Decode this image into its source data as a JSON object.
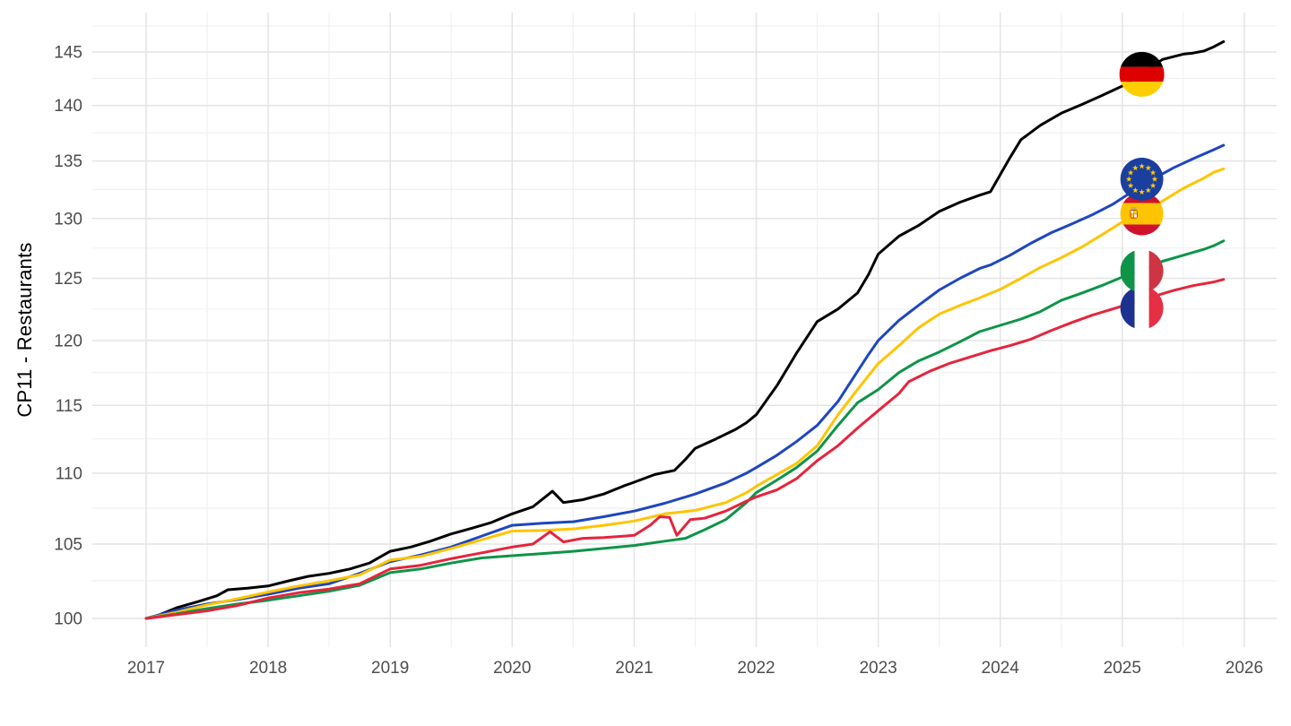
{
  "figure": {
    "background": "#ffffff"
  },
  "chart_data": {
    "type": "line",
    "title": "",
    "xlabel": "",
    "ylabel": "CP11 - Restaurants",
    "y_scale": "log",
    "grid": "on",
    "legend": "none (flag icons mark each series near its end)",
    "x_range": [
      2016.56,
      2026.26
    ],
    "y_range": [
      98.1,
      148.8
    ],
    "x_ticks": [
      2017,
      2018,
      2019,
      2020,
      2021,
      2022,
      2023,
      2024,
      2025,
      2026
    ],
    "y_ticks": [
      100,
      105,
      110,
      115,
      120,
      125,
      130,
      135,
      140,
      145
    ],
    "y_minor_ticks": [
      102.5,
      107.5,
      112.5,
      117.5,
      122.5,
      127.5,
      132.5,
      137.5,
      142.5,
      147.5
    ],
    "colors": {
      "grid_major": "#e4e4e4",
      "grid_minor": "#f1f1f1",
      "tick_text": "#4d4d4d",
      "germany": "#000000",
      "eu": "#1e46be",
      "spain": "#ffc400",
      "italy": "#0d9448",
      "france": "#e6243c"
    },
    "series": [
      {
        "name": "Germany",
        "id": "germany",
        "color": "#000000",
        "flag": "de",
        "flag_t": 2025.16,
        "flag_v": 142.9,
        "points": [
          [
            2017.0,
            100.0
          ],
          [
            2017.08,
            100.15
          ],
          [
            2017.25,
            100.7
          ],
          [
            2017.42,
            101.1
          ],
          [
            2017.58,
            101.5
          ],
          [
            2017.67,
            101.9
          ],
          [
            2017.83,
            102.0
          ],
          [
            2018.0,
            102.15
          ],
          [
            2018.17,
            102.5
          ],
          [
            2018.33,
            102.8
          ],
          [
            2018.5,
            103.0
          ],
          [
            2018.67,
            103.3
          ],
          [
            2018.83,
            103.7
          ],
          [
            2019.0,
            104.5
          ],
          [
            2019.17,
            104.8
          ],
          [
            2019.33,
            105.2
          ],
          [
            2019.5,
            105.7
          ],
          [
            2019.67,
            106.1
          ],
          [
            2019.83,
            106.5
          ],
          [
            2020.0,
            107.1
          ],
          [
            2020.17,
            107.6
          ],
          [
            2020.33,
            108.7
          ],
          [
            2020.42,
            107.9
          ],
          [
            2020.58,
            108.1
          ],
          [
            2020.75,
            108.5
          ],
          [
            2020.92,
            109.1
          ],
          [
            2021.0,
            109.35
          ],
          [
            2021.17,
            109.9
          ],
          [
            2021.33,
            110.2
          ],
          [
            2021.42,
            111.0
          ],
          [
            2021.5,
            111.8
          ],
          [
            2021.67,
            112.5
          ],
          [
            2021.83,
            113.2
          ],
          [
            2021.92,
            113.7
          ],
          [
            2022.0,
            114.3
          ],
          [
            2022.17,
            116.5
          ],
          [
            2022.33,
            119.0
          ],
          [
            2022.5,
            121.5
          ],
          [
            2022.67,
            122.5
          ],
          [
            2022.83,
            123.8
          ],
          [
            2022.92,
            125.3
          ],
          [
            2023.0,
            127.0
          ],
          [
            2023.17,
            128.5
          ],
          [
            2023.33,
            129.4
          ],
          [
            2023.5,
            130.6
          ],
          [
            2023.67,
            131.4
          ],
          [
            2023.83,
            132.0
          ],
          [
            2023.92,
            132.3
          ],
          [
            2024.08,
            135.3
          ],
          [
            2024.17,
            136.9
          ],
          [
            2024.33,
            138.2
          ],
          [
            2024.5,
            139.3
          ],
          [
            2024.67,
            140.1
          ],
          [
            2024.83,
            140.9
          ],
          [
            2025.0,
            141.8
          ],
          [
            2025.17,
            143.0
          ],
          [
            2025.33,
            144.3
          ],
          [
            2025.5,
            144.8
          ],
          [
            2025.58,
            144.9
          ],
          [
            2025.67,
            145.1
          ],
          [
            2025.75,
            145.5
          ],
          [
            2025.83,
            146.0
          ]
        ]
      },
      {
        "name": "European Union",
        "id": "eu",
        "color": "#1e46be",
        "flag": "eu",
        "flag_t": 2025.16,
        "flag_v": 133.4,
        "points": [
          [
            2017.0,
            100.0
          ],
          [
            2017.25,
            100.55
          ],
          [
            2017.5,
            100.95
          ],
          [
            2017.75,
            101.25
          ],
          [
            2018.0,
            101.6
          ],
          [
            2018.25,
            102.0
          ],
          [
            2018.5,
            102.3
          ],
          [
            2018.75,
            103.0
          ],
          [
            2019.0,
            103.8
          ],
          [
            2019.25,
            104.25
          ],
          [
            2019.5,
            104.8
          ],
          [
            2019.75,
            105.55
          ],
          [
            2020.0,
            106.3
          ],
          [
            2020.25,
            106.45
          ],
          [
            2020.5,
            106.55
          ],
          [
            2020.75,
            106.9
          ],
          [
            2021.0,
            107.3
          ],
          [
            2021.25,
            107.85
          ],
          [
            2021.5,
            108.5
          ],
          [
            2021.75,
            109.3
          ],
          [
            2021.92,
            110.0
          ],
          [
            2022.0,
            110.4
          ],
          [
            2022.17,
            111.3
          ],
          [
            2022.33,
            112.3
          ],
          [
            2022.5,
            113.5
          ],
          [
            2022.67,
            115.3
          ],
          [
            2022.83,
            117.6
          ],
          [
            2022.92,
            118.9
          ],
          [
            2023.0,
            120.0
          ],
          [
            2023.17,
            121.6
          ],
          [
            2023.33,
            122.8
          ],
          [
            2023.5,
            124.05
          ],
          [
            2023.67,
            125.0
          ],
          [
            2023.83,
            125.8
          ],
          [
            2023.92,
            126.1
          ],
          [
            2024.0,
            126.5
          ],
          [
            2024.08,
            126.9
          ],
          [
            2024.25,
            127.9
          ],
          [
            2024.42,
            128.8
          ],
          [
            2024.58,
            129.5
          ],
          [
            2024.75,
            130.3
          ],
          [
            2024.92,
            131.2
          ],
          [
            2025.08,
            132.3
          ],
          [
            2025.25,
            133.4
          ],
          [
            2025.42,
            134.4
          ],
          [
            2025.58,
            135.2
          ],
          [
            2025.75,
            136.0
          ],
          [
            2025.83,
            136.4
          ]
        ]
      },
      {
        "name": "Spain",
        "id": "spain",
        "color": "#ffc400",
        "flag": "es",
        "flag_t": 2025.16,
        "flag_v": 130.4,
        "points": [
          [
            2017.0,
            100.0
          ],
          [
            2017.25,
            100.4
          ],
          [
            2017.5,
            100.9
          ],
          [
            2017.75,
            101.3
          ],
          [
            2018.0,
            101.75
          ],
          [
            2018.25,
            102.15
          ],
          [
            2018.5,
            102.5
          ],
          [
            2018.75,
            102.9
          ],
          [
            2019.0,
            103.9
          ],
          [
            2019.25,
            104.15
          ],
          [
            2019.5,
            104.7
          ],
          [
            2019.75,
            105.3
          ],
          [
            2020.0,
            105.9
          ],
          [
            2020.25,
            105.95
          ],
          [
            2020.5,
            106.05
          ],
          [
            2020.75,
            106.3
          ],
          [
            2021.0,
            106.6
          ],
          [
            2021.25,
            107.1
          ],
          [
            2021.5,
            107.35
          ],
          [
            2021.75,
            107.9
          ],
          [
            2021.92,
            108.6
          ],
          [
            2022.0,
            109.05
          ],
          [
            2022.17,
            109.9
          ],
          [
            2022.33,
            110.7
          ],
          [
            2022.5,
            112.0
          ],
          [
            2022.67,
            114.3
          ],
          [
            2022.83,
            116.2
          ],
          [
            2023.0,
            118.2
          ],
          [
            2023.17,
            119.6
          ],
          [
            2023.33,
            121.0
          ],
          [
            2023.5,
            122.1
          ],
          [
            2023.67,
            122.8
          ],
          [
            2023.83,
            123.4
          ],
          [
            2024.0,
            124.1
          ],
          [
            2024.17,
            125.0
          ],
          [
            2024.33,
            125.9
          ],
          [
            2024.5,
            126.7
          ],
          [
            2024.67,
            127.6
          ],
          [
            2024.83,
            128.6
          ],
          [
            2025.0,
            129.7
          ],
          [
            2025.17,
            130.5
          ],
          [
            2025.33,
            131.5
          ],
          [
            2025.5,
            132.6
          ],
          [
            2025.67,
            133.5
          ],
          [
            2025.75,
            134.0
          ],
          [
            2025.83,
            134.3
          ]
        ]
      },
      {
        "name": "Italy",
        "id": "italy",
        "color": "#0d9448",
        "flag": "it",
        "flag_t": 2025.16,
        "flag_v": 125.6,
        "points": [
          [
            2017.0,
            100.0
          ],
          [
            2017.25,
            100.3
          ],
          [
            2017.5,
            100.65
          ],
          [
            2017.75,
            100.95
          ],
          [
            2018.0,
            101.2
          ],
          [
            2018.25,
            101.5
          ],
          [
            2018.5,
            101.8
          ],
          [
            2018.75,
            102.2
          ],
          [
            2019.0,
            103.05
          ],
          [
            2019.25,
            103.3
          ],
          [
            2019.5,
            103.7
          ],
          [
            2019.75,
            104.05
          ],
          [
            2020.0,
            104.2
          ],
          [
            2020.25,
            104.35
          ],
          [
            2020.5,
            104.5
          ],
          [
            2020.75,
            104.7
          ],
          [
            2021.0,
            104.9
          ],
          [
            2021.25,
            105.2
          ],
          [
            2021.42,
            105.4
          ],
          [
            2021.58,
            106.0
          ],
          [
            2021.75,
            106.7
          ],
          [
            2021.92,
            107.9
          ],
          [
            2022.0,
            108.6
          ],
          [
            2022.17,
            109.5
          ],
          [
            2022.33,
            110.4
          ],
          [
            2022.5,
            111.6
          ],
          [
            2022.67,
            113.5
          ],
          [
            2022.83,
            115.2
          ],
          [
            2023.0,
            116.2
          ],
          [
            2023.17,
            117.5
          ],
          [
            2023.33,
            118.4
          ],
          [
            2023.5,
            119.1
          ],
          [
            2023.67,
            119.9
          ],
          [
            2023.83,
            120.7
          ],
          [
            2024.0,
            121.2
          ],
          [
            2024.17,
            121.7
          ],
          [
            2024.33,
            122.3
          ],
          [
            2024.5,
            123.2
          ],
          [
            2024.67,
            123.8
          ],
          [
            2024.83,
            124.4
          ],
          [
            2025.0,
            125.1
          ],
          [
            2025.17,
            125.7
          ],
          [
            2025.33,
            126.4
          ],
          [
            2025.5,
            126.9
          ],
          [
            2025.67,
            127.4
          ],
          [
            2025.75,
            127.7
          ],
          [
            2025.83,
            128.1
          ]
        ]
      },
      {
        "name": "France",
        "id": "france",
        "color": "#e6243c",
        "flag": "fr",
        "flag_t": 2025.16,
        "flag_v": 122.6,
        "points": [
          [
            2017.0,
            100.0
          ],
          [
            2017.25,
            100.25
          ],
          [
            2017.5,
            100.5
          ],
          [
            2017.75,
            100.85
          ],
          [
            2018.0,
            101.35
          ],
          [
            2018.25,
            101.7
          ],
          [
            2018.5,
            101.95
          ],
          [
            2018.75,
            102.3
          ],
          [
            2019.0,
            103.3
          ],
          [
            2019.25,
            103.55
          ],
          [
            2019.5,
            104.0
          ],
          [
            2019.75,
            104.4
          ],
          [
            2020.0,
            104.8
          ],
          [
            2020.17,
            105.0
          ],
          [
            2020.31,
            105.85
          ],
          [
            2020.42,
            105.15
          ],
          [
            2020.58,
            105.4
          ],
          [
            2020.75,
            105.45
          ],
          [
            2020.92,
            105.55
          ],
          [
            2021.0,
            105.6
          ],
          [
            2021.13,
            106.3
          ],
          [
            2021.21,
            106.9
          ],
          [
            2021.29,
            106.85
          ],
          [
            2021.35,
            105.6
          ],
          [
            2021.46,
            106.7
          ],
          [
            2021.58,
            106.8
          ],
          [
            2021.75,
            107.3
          ],
          [
            2021.92,
            108.0
          ],
          [
            2022.0,
            108.3
          ],
          [
            2022.17,
            108.8
          ],
          [
            2022.33,
            109.6
          ],
          [
            2022.5,
            110.9
          ],
          [
            2022.67,
            112.0
          ],
          [
            2022.83,
            113.3
          ],
          [
            2023.0,
            114.6
          ],
          [
            2023.17,
            115.9
          ],
          [
            2023.25,
            116.8
          ],
          [
            2023.42,
            117.6
          ],
          [
            2023.58,
            118.2
          ],
          [
            2023.75,
            118.7
          ],
          [
            2023.92,
            119.2
          ],
          [
            2024.08,
            119.6
          ],
          [
            2024.25,
            120.1
          ],
          [
            2024.42,
            120.8
          ],
          [
            2024.58,
            121.4
          ],
          [
            2024.75,
            122.0
          ],
          [
            2024.92,
            122.5
          ],
          [
            2025.08,
            123.0
          ],
          [
            2025.25,
            123.5
          ],
          [
            2025.42,
            124.0
          ],
          [
            2025.58,
            124.4
          ],
          [
            2025.75,
            124.7
          ],
          [
            2025.83,
            124.9
          ]
        ]
      }
    ],
    "flag_draw_order": [
      "france",
      "italy",
      "spain",
      "eu",
      "germany"
    ],
    "flag_radius": 24
  }
}
